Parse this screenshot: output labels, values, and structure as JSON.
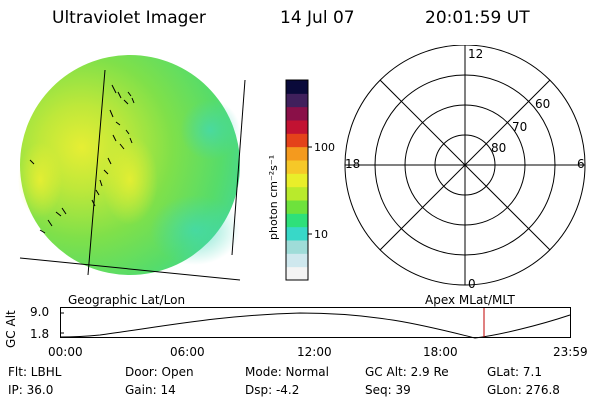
{
  "header": {
    "instrument": "Ultraviolet Imager",
    "date": "14 Jul 07",
    "time": "20:01:59 UT"
  },
  "colorbar": {
    "title": "photon cm⁻²s⁻¹",
    "ticks": [
      "100",
      "10"
    ],
    "colors": [
      "#f4f4f4",
      "#cfe8ee",
      "#9fdcd8",
      "#38d8c8",
      "#2ee07a",
      "#6ee23c",
      "#b9ea2c",
      "#e9ee2a",
      "#f6c828",
      "#f49a1e",
      "#e4421a",
      "#c21232",
      "#8a1048",
      "#40205c",
      "#0a0a3a"
    ]
  },
  "polar": {
    "mlt_labels": {
      "top": "12",
      "left": "18",
      "right": "6",
      "bottom": "0"
    },
    "lat_labels": [
      "60",
      "70",
      "80"
    ]
  },
  "track": {
    "left_label": "Geographic Lat/Lon",
    "right_label": "Apex MLat/MLT",
    "y_label": "GC Alt",
    "y_ticks": [
      "9.0",
      "1.8"
    ],
    "x_ticks": [
      "00:00",
      "06:00",
      "12:00",
      "18:00",
      "23:59"
    ],
    "current_marker_time": "20:01:59"
  },
  "status": {
    "filter": "Flt: LBHL",
    "door": "Door: Open",
    "mode": "Mode: Normal",
    "gc_alt": "GC Alt: 2.9 Re",
    "glat": "GLat:   7.1",
    "ip": "IP: 36.0",
    "gain": "Gain: 14",
    "dsp": "Dsp:   -4.2",
    "seq": "Seq: 39",
    "glon": "GLon: 276.8"
  }
}
